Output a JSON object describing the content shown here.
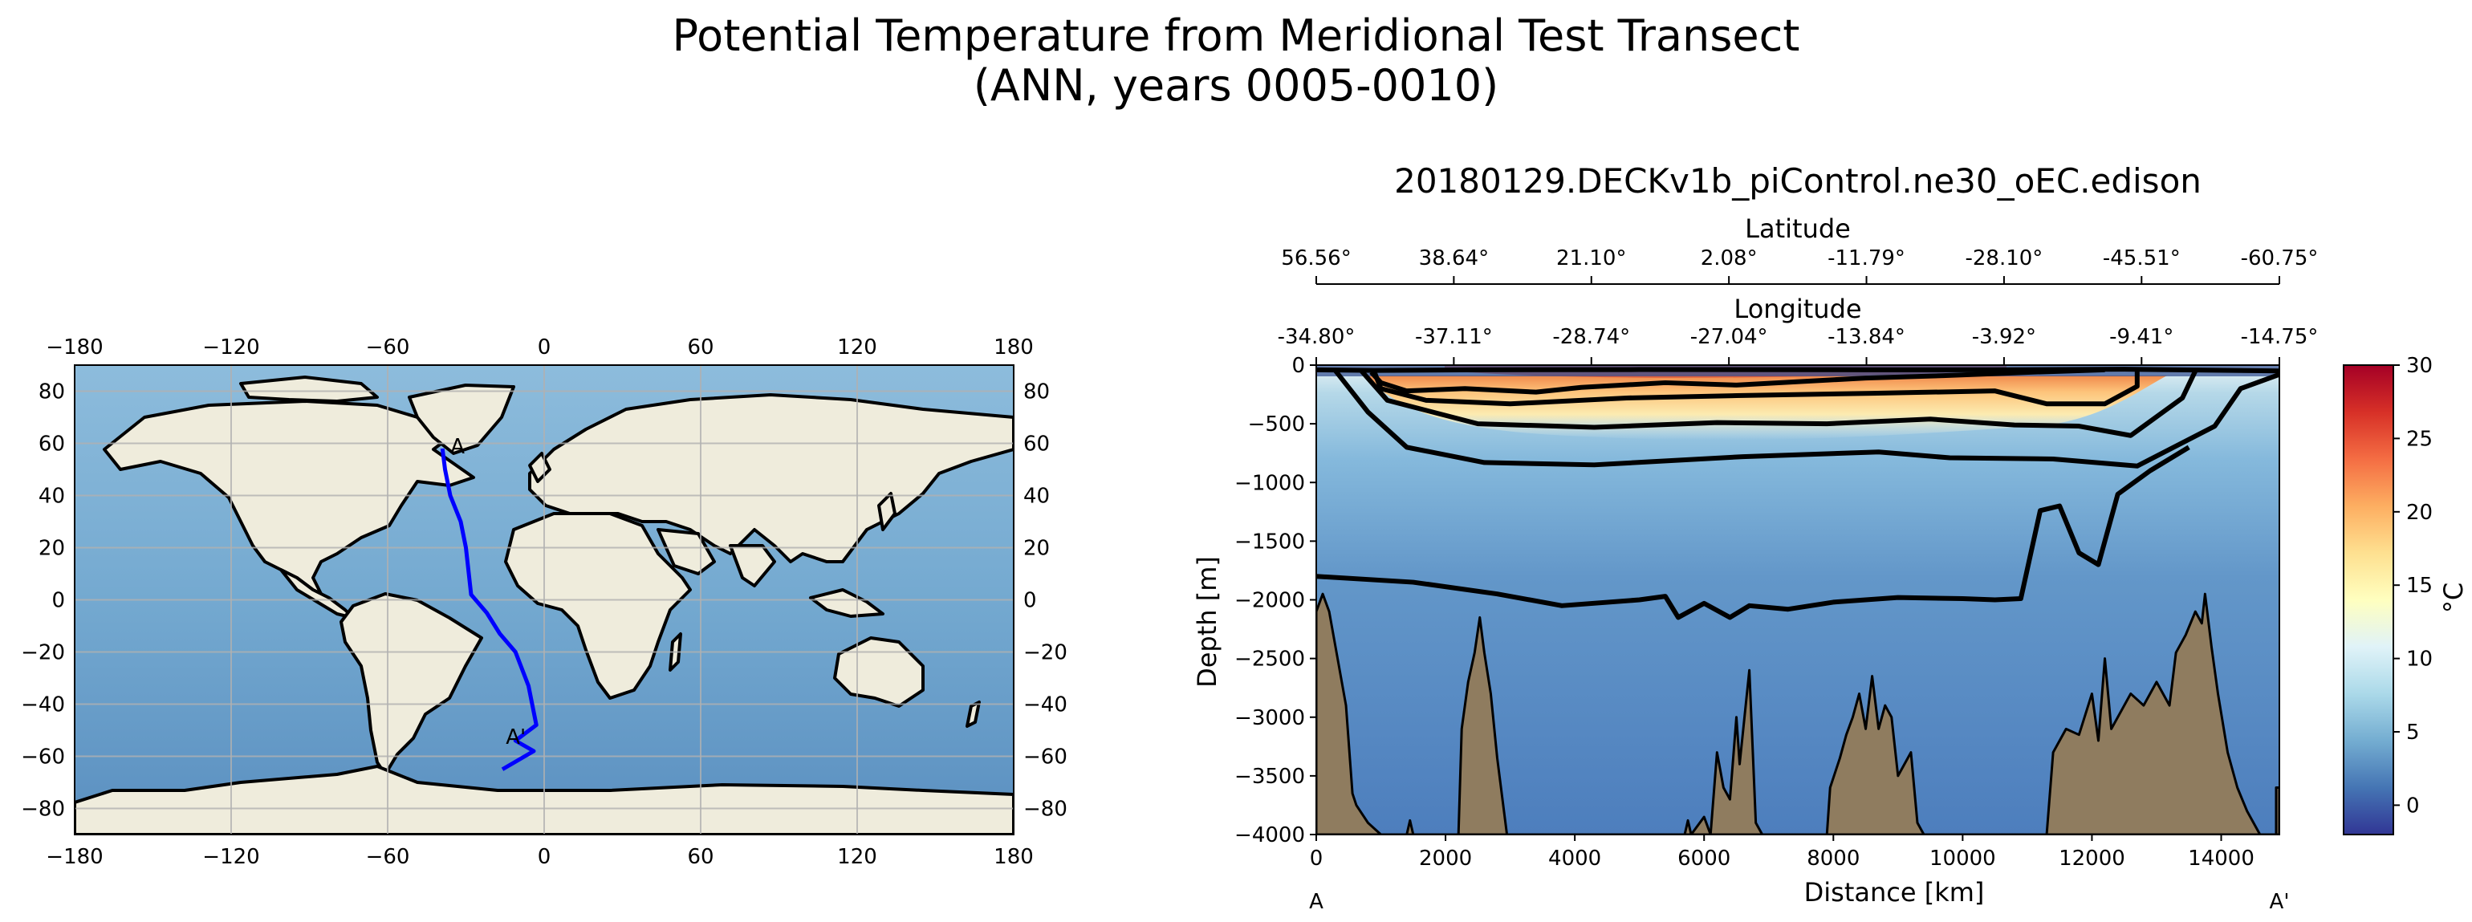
{
  "figure": {
    "title_line1": "Potential Temperature from Meridional Test Transect",
    "title_line2": "(ANN, years 0005-0010)"
  },
  "colors": {
    "ocean_shallow": "#7eb3d6",
    "ocean_deep": "#4a7fb5",
    "land": "#efecdc",
    "transect": "#0000ff",
    "bathymetry": "#8f7c5f",
    "grid": "#b0b0b0"
  },
  "chart_data": [
    {
      "type": "map",
      "projection": "PlateCarree",
      "xticks": [
        -180,
        -120,
        -60,
        0,
        60,
        120,
        180
      ],
      "yticks": [
        80,
        60,
        40,
        20,
        0,
        -20,
        -40,
        -60,
        -80
      ],
      "xlim": [
        -180,
        180
      ],
      "ylim": [
        -90,
        90
      ],
      "grid": true,
      "transect": {
        "name": "Meridional Test Transect",
        "start_label": "A",
        "end_label": "A'",
        "lon": [
          -39,
          -38,
          -36,
          -32,
          -30,
          -28,
          -22,
          -17,
          -11,
          -6,
          -3,
          -11,
          -4,
          -16
        ],
        "lat": [
          58,
          50,
          40,
          30,
          20,
          2,
          -5,
          -13,
          -20,
          -33,
          -48,
          -54,
          -58,
          -65
        ]
      }
    },
    {
      "type": "heatmap",
      "title": "20180129.DECKv1b_piControl.ne30_oEC.edison",
      "xlabel": "Distance [km]",
      "ylabel": "Depth [m]",
      "xlim": [
        0,
        14900
      ],
      "ylim": [
        -4000,
        0
      ],
      "xticks": [
        0,
        2000,
        4000,
        6000,
        8000,
        10000,
        12000,
        14000
      ],
      "yticks": [
        0,
        -500,
        -1000,
        -1500,
        -2000,
        -2500,
        -3000,
        -3500,
        -4000
      ],
      "x_endpoints": {
        "start": "A",
        "end": "A'"
      },
      "secondary_axes": {
        "latitude": {
          "label": "Latitude",
          "ticks": [
            "56.56°",
            "38.64°",
            "21.10°",
            "2.08°",
            "-11.79°",
            "-28.10°",
            "-45.51°",
            "-60.75°"
          ],
          "distance": [
            0,
            2128,
            4256,
            6384,
            8512,
            10640,
            12768,
            14900
          ]
        },
        "longitude": {
          "label": "Longitude",
          "ticks": [
            "-34.80°",
            "-37.11°",
            "-28.74°",
            "-27.04°",
            "-13.84°",
            "-3.92°",
            "-9.41°",
            "-14.75°"
          ],
          "distance": [
            0,
            2128,
            4256,
            6384,
            8512,
            10640,
            12768,
            14900
          ]
        }
      },
      "colorbar": {
        "label": "°C",
        "vmin": -2,
        "vmax": 30,
        "ticks": [
          30,
          25,
          20,
          15,
          10,
          5,
          0
        ],
        "colors": [
          "#313695",
          "#4575b4",
          "#74add1",
          "#abd9e9",
          "#e0f3f8",
          "#ffffbf",
          "#fee090",
          "#fdae61",
          "#f46d43",
          "#d73027",
          "#a50026"
        ]
      },
      "contours": [
        {
          "name": "shallow-isotherm",
          "points": [
            [
              0,
              -40
            ],
            [
              900,
              -45
            ],
            [
              2500,
              -40
            ],
            [
              5000,
              -38
            ],
            [
              8500,
              -40
            ],
            [
              10500,
              -40
            ],
            [
              12500,
              -35
            ],
            [
              14900,
              -50
            ]
          ]
        },
        {
          "name": "isotherm-1",
          "points": [
            [
              850,
              -60
            ],
            [
              1000,
              -150
            ],
            [
              1400,
              -220
            ],
            [
              2300,
              -200
            ],
            [
              3400,
              -230
            ],
            [
              4100,
              -190
            ],
            [
              5400,
              -150
            ],
            [
              6500,
              -170
            ],
            [
              8500,
              -110
            ],
            [
              9700,
              -90
            ],
            [
              11100,
              -60
            ],
            [
              12200,
              -40
            ]
          ]
        },
        {
          "name": "isotherm-2",
          "points": [
            [
              900,
              -60
            ],
            [
              1000,
              -200
            ],
            [
              1700,
              -300
            ],
            [
              3000,
              -330
            ],
            [
              4800,
              -280
            ],
            [
              6500,
              -260
            ],
            [
              8600,
              -240
            ],
            [
              10500,
              -220
            ],
            [
              11300,
              -330
            ],
            [
              12200,
              -330
            ],
            [
              12700,
              -180
            ],
            [
              12700,
              -50
            ]
          ]
        },
        {
          "name": "isotherm-3",
          "points": [
            [
              700,
              -50
            ],
            [
              1100,
              -300
            ],
            [
              2500,
              -500
            ],
            [
              4300,
              -530
            ],
            [
              6200,
              -490
            ],
            [
              7900,
              -500
            ],
            [
              9500,
              -460
            ],
            [
              10800,
              -510
            ],
            [
              11800,
              -520
            ],
            [
              12600,
              -600
            ],
            [
              13400,
              -280
            ],
            [
              13600,
              -50
            ]
          ]
        },
        {
          "name": "isotherm-4",
          "points": [
            [
              300,
              -50
            ],
            [
              800,
              -400
            ],
            [
              1400,
              -700
            ],
            [
              2600,
              -830
            ],
            [
              4300,
              -850
            ],
            [
              6600,
              -780
            ],
            [
              8700,
              -740
            ],
            [
              9800,
              -790
            ],
            [
              11400,
              -800
            ],
            [
              12700,
              -860
            ],
            [
              13900,
              -520
            ],
            [
              14300,
              -200
            ],
            [
              14900,
              -80
            ]
          ]
        },
        {
          "name": "isotherm-5",
          "points": [
            [
              0,
              -1800
            ],
            [
              1500,
              -1850
            ],
            [
              2800,
              -1950
            ],
            [
              3800,
              -2050
            ],
            [
              5000,
              -2000
            ],
            [
              5400,
              -1970
            ],
            [
              5600,
              -2150
            ],
            [
              6000,
              -2030
            ],
            [
              6400,
              -2150
            ],
            [
              6700,
              -2050
            ],
            [
              7300,
              -2080
            ],
            [
              8000,
              -2020
            ],
            [
              9000,
              -1980
            ],
            [
              10000,
              -1990
            ],
            [
              10500,
              -2000
            ],
            [
              10900,
              -1990
            ],
            [
              11200,
              -1240
            ],
            [
              11500,
              -1200
            ],
            [
              11800,
              -1600
            ],
            [
              12100,
              -1700
            ],
            [
              12400,
              -1100
            ],
            [
              12900,
              -900
            ],
            [
              13500,
              -700
            ]
          ]
        }
      ],
      "bathymetry": {
        "points": [
          [
            0,
            -4000
          ],
          [
            0,
            -2100
          ],
          [
            100,
            -1950
          ],
          [
            200,
            -2100
          ],
          [
            330,
            -2500
          ],
          [
            460,
            -2900
          ],
          [
            560,
            -3650
          ],
          [
            620,
            -3750
          ],
          [
            800,
            -3900
          ],
          [
            1000,
            -4000
          ],
          [
            1400,
            -4000
          ],
          [
            1450,
            -3880
          ],
          [
            1500,
            -4000
          ],
          [
            2200,
            -4000
          ],
          [
            2250,
            -3100
          ],
          [
            2350,
            -2700
          ],
          [
            2450,
            -2450
          ],
          [
            2530,
            -2150
          ],
          [
            2600,
            -2450
          ],
          [
            2700,
            -2800
          ],
          [
            2800,
            -3350
          ],
          [
            2950,
            -4000
          ],
          [
            5700,
            -4000
          ],
          [
            5750,
            -3880
          ],
          [
            5800,
            -4000
          ],
          [
            6000,
            -3850
          ],
          [
            6100,
            -4000
          ],
          [
            6200,
            -3300
          ],
          [
            6300,
            -3600
          ],
          [
            6400,
            -3700
          ],
          [
            6500,
            -3000
          ],
          [
            6550,
            -3400
          ],
          [
            6700,
            -2600
          ],
          [
            6800,
            -3900
          ],
          [
            6900,
            -4000
          ],
          [
            7900,
            -4000
          ],
          [
            7950,
            -3600
          ],
          [
            8100,
            -3350
          ],
          [
            8200,
            -3150
          ],
          [
            8300,
            -3000
          ],
          [
            8400,
            -2800
          ],
          [
            8500,
            -3100
          ],
          [
            8600,
            -2650
          ],
          [
            8700,
            -3100
          ],
          [
            8800,
            -2900
          ],
          [
            8900,
            -3000
          ],
          [
            9000,
            -3500
          ],
          [
            9100,
            -3400
          ],
          [
            9200,
            -3300
          ],
          [
            9300,
            -3900
          ],
          [
            9400,
            -4000
          ],
          [
            11300,
            -4000
          ],
          [
            11400,
            -3300
          ],
          [
            11600,
            -3100
          ],
          [
            11800,
            -3150
          ],
          [
            12000,
            -2800
          ],
          [
            12100,
            -3200
          ],
          [
            12200,
            -2500
          ],
          [
            12300,
            -3100
          ],
          [
            12400,
            -3000
          ],
          [
            12600,
            -2800
          ],
          [
            12800,
            -2900
          ],
          [
            13000,
            -2700
          ],
          [
            13200,
            -2900
          ],
          [
            13300,
            -2450
          ],
          [
            13450,
            -2300
          ],
          [
            13600,
            -2100
          ],
          [
            13700,
            -2200
          ],
          [
            13750,
            -1950
          ],
          [
            13850,
            -2400
          ],
          [
            13950,
            -2800
          ],
          [
            14100,
            -3300
          ],
          [
            14250,
            -3600
          ],
          [
            14400,
            -3800
          ],
          [
            14600,
            -4000
          ],
          [
            14850,
            -4000
          ],
          [
            14850,
            -3600
          ],
          [
            14900,
            -3600
          ],
          [
            14900,
            -4000
          ]
        ]
      }
    }
  ]
}
